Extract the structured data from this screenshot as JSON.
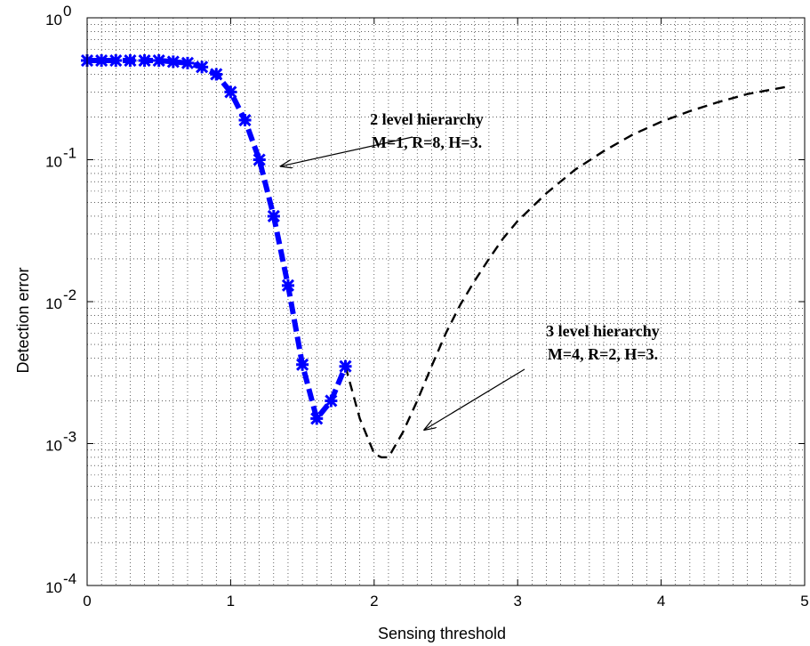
{
  "chart_data": {
    "type": "line",
    "xlabel": "Sensing threshold",
    "ylabel": "Detection error",
    "xlim": [
      0,
      5
    ],
    "ylim": [
      0.0001,
      1
    ],
    "yscale": "log",
    "grid": true,
    "x_ticks": [
      "0",
      "1",
      "2",
      "3",
      "4",
      "5"
    ],
    "y_ticks": [
      {
        "base": "10",
        "exp": "0"
      },
      {
        "base": "10",
        "exp": "-1"
      },
      {
        "base": "10",
        "exp": "-2"
      },
      {
        "base": "10",
        "exp": "-3"
      },
      {
        "base": "10",
        "exp": "-4"
      }
    ],
    "series": [
      {
        "color": "#0000ff",
        "style": "dashed-thick-markers",
        "x": [
          0,
          0.1,
          0.2,
          0.3,
          0.4,
          0.5,
          0.6,
          0.7,
          0.8,
          0.9,
          1.0,
          1.1,
          1.2,
          1.3,
          1.4,
          1.5,
          1.6,
          1.7,
          1.8
        ],
        "y": [
          0.5,
          0.5,
          0.5,
          0.5,
          0.5,
          0.5,
          0.49,
          0.48,
          0.45,
          0.4,
          0.3,
          0.19,
          0.1,
          0.04,
          0.013,
          0.0036,
          0.0015,
          0.002,
          0.0035
        ]
      },
      {
        "color": "#000000",
        "style": "dashed",
        "x": [
          1.8,
          1.9,
          2.0,
          2.05,
          2.1,
          2.2,
          2.3,
          2.4,
          2.5,
          2.6,
          2.7,
          2.8,
          2.9,
          3.0,
          3.2,
          3.4,
          3.6,
          3.8,
          4.0,
          4.2,
          4.4,
          4.6,
          4.9
        ],
        "y": [
          0.0035,
          0.0015,
          0.00085,
          0.0008,
          0.0008,
          0.0012,
          0.002,
          0.0035,
          0.006,
          0.0095,
          0.014,
          0.02,
          0.028,
          0.037,
          0.058,
          0.085,
          0.115,
          0.15,
          0.185,
          0.22,
          0.255,
          0.29,
          0.33
        ]
      }
    ],
    "annotations": [
      {
        "lines": [
          "2 level hierarchy",
          "M=1, R=8, H=3."
        ],
        "arrow_to": [
          1.35,
          0.09
        ]
      },
      {
        "lines": [
          "3 level hierarchy",
          "M=4, R=2, H=3."
        ],
        "arrow_to": [
          2.35,
          0.00125
        ]
      }
    ]
  }
}
